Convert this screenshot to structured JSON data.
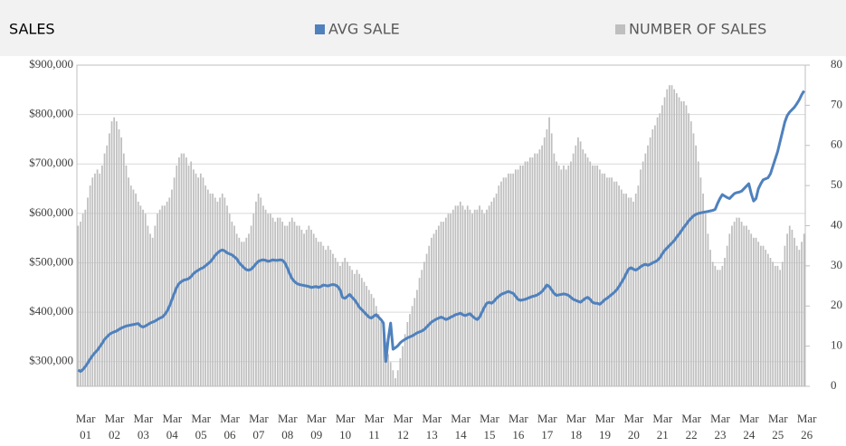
{
  "chart_data": {
    "type": "combo",
    "title": "SALES",
    "categories": [
      null,
      null,
      "Mar 01",
      null,
      null,
      null,
      null,
      null,
      null,
      null,
      null,
      null,
      null,
      null,
      "Mar 02",
      null,
      null,
      null,
      null,
      null,
      null,
      null,
      null,
      null,
      null,
      null,
      "Mar 03",
      null,
      null,
      null,
      null,
      null,
      null,
      null,
      null,
      null,
      null,
      null,
      "Mar 04",
      null,
      null,
      null,
      null,
      null,
      null,
      null,
      null,
      null,
      null,
      null,
      "Mar 05",
      null,
      null,
      null,
      null,
      null,
      null,
      null,
      null,
      null,
      null,
      null,
      "Mar 06",
      null,
      null,
      null,
      null,
      null,
      null,
      null,
      null,
      null,
      null,
      null,
      "Mar 07",
      null,
      null,
      null,
      null,
      null,
      null,
      null,
      null,
      null,
      null,
      null,
      "Mar 08",
      null,
      null,
      null,
      null,
      null,
      null,
      null,
      null,
      null,
      null,
      null,
      "Mar 09",
      null,
      null,
      null,
      null,
      null,
      null,
      null,
      null,
      null,
      null,
      null,
      "Mar 10",
      null,
      null,
      null,
      null,
      null,
      null,
      null,
      null,
      null,
      null,
      null,
      "Mar 11",
      null,
      null,
      null,
      null,
      null,
      null,
      null,
      null,
      null,
      null,
      null,
      "Mar 12",
      null,
      null,
      null,
      null,
      null,
      null,
      null,
      null,
      null,
      null,
      null,
      "Mar 13",
      null,
      null,
      null,
      null,
      null,
      null,
      null,
      null,
      null,
      null,
      null,
      "Mar 14",
      null,
      null,
      null,
      null,
      null,
      null,
      null,
      null,
      null,
      null,
      null,
      "Mar 15",
      null,
      null,
      null,
      null,
      null,
      null,
      null,
      null,
      null,
      null,
      null,
      "Mar 16",
      null,
      null,
      null,
      null,
      null,
      null,
      null,
      null,
      null,
      null,
      null,
      "Mar 17",
      null,
      null,
      null,
      null,
      null,
      null,
      null,
      null,
      null,
      null,
      null,
      "Mar 18",
      null,
      null,
      null,
      null,
      null,
      null,
      null,
      null,
      null,
      null,
      null,
      "Mar 19",
      null,
      null,
      null,
      null,
      null,
      null,
      null,
      null,
      null,
      null,
      null,
      "Mar 20",
      null,
      null,
      null,
      null,
      null,
      null,
      null,
      null,
      null,
      null,
      null,
      "Mar 21",
      null,
      null,
      null,
      null,
      null,
      null,
      null,
      null,
      null,
      null,
      null,
      "Mar 22",
      null,
      null,
      null,
      null,
      null,
      null,
      null,
      null,
      null,
      null,
      null,
      "Mar 23",
      null,
      null,
      null,
      null,
      null,
      null,
      null,
      null,
      null,
      null,
      null,
      "Mar 24",
      null,
      null,
      null,
      null,
      null,
      null,
      null,
      null,
      null,
      null,
      null,
      "Mar 25",
      null,
      null,
      null,
      null,
      null,
      null,
      null,
      null,
      null,
      null,
      null,
      "Mar 26"
    ],
    "series": [
      {
        "name": "NUMBER OF SALES",
        "type": "bar",
        "axis": "y2",
        "color": "#bfbfbf",
        "values": [
          40,
          41,
          43,
          44,
          47,
          50,
          52,
          53,
          54,
          53,
          55,
          58,
          60,
          63,
          66,
          67,
          66,
          64,
          62,
          58,
          55,
          52,
          50,
          49,
          48,
          46,
          45,
          44,
          43,
          40,
          38,
          37,
          40,
          43,
          44,
          45,
          45,
          46,
          47,
          49,
          52,
          55,
          57,
          58,
          58,
          57,
          55,
          56,
          54,
          53,
          52,
          53,
          52,
          50,
          49,
          48,
          48,
          47,
          46,
          47,
          48,
          47,
          45,
          43,
          41,
          40,
          38,
          37,
          36,
          36,
          37,
          38,
          40,
          43,
          46,
          48,
          47,
          45,
          44,
          43,
          43,
          42,
          41,
          42,
          42,
          41,
          40,
          40,
          41,
          42,
          41,
          40,
          40,
          39,
          38,
          39,
          40,
          39,
          38,
          37,
          36,
          36,
          35,
          34,
          35,
          34,
          33,
          32,
          31,
          30,
          31,
          32,
          31,
          30,
          29,
          28,
          29,
          28,
          27,
          26,
          25,
          24,
          23,
          22,
          20,
          18,
          16,
          14,
          11,
          8,
          6,
          4,
          2,
          4,
          7,
          10,
          13,
          16,
          18,
          20,
          22,
          24,
          27,
          29,
          31,
          33,
          35,
          37,
          38,
          39,
          40,
          41,
          41,
          42,
          43,
          43,
          44,
          45,
          45,
          46,
          45,
          44,
          45,
          44,
          43,
          44,
          44,
          45,
          44,
          43,
          44,
          45,
          46,
          47,
          48,
          50,
          51,
          52,
          52,
          53,
          53,
          53,
          54,
          54,
          55,
          55,
          56,
          56,
          57,
          57,
          58,
          58,
          59,
          60,
          62,
          64,
          67,
          63,
          58,
          56,
          55,
          54,
          55,
          54,
          55,
          56,
          58,
          60,
          62,
          61,
          59,
          58,
          57,
          56,
          55,
          55,
          55,
          54,
          53,
          53,
          52,
          52,
          52,
          51,
          51,
          50,
          49,
          48,
          48,
          47,
          47,
          46,
          48,
          50,
          54,
          56,
          58,
          60,
          62,
          64,
          65,
          67,
          68,
          70,
          72,
          74,
          75,
          75,
          74,
          73,
          72,
          71,
          71,
          70,
          68,
          66,
          63,
          60,
          56,
          52,
          48,
          43,
          38,
          34,
          31,
          30,
          29,
          29,
          30,
          32,
          35,
          38,
          40,
          41,
          42,
          42,
          41,
          40,
          40,
          39,
          38,
          37,
          37,
          36,
          35,
          35,
          34,
          33,
          32,
          31,
          30,
          30,
          29,
          31,
          35,
          38,
          40,
          39,
          37,
          35,
          34,
          36,
          38
        ]
      },
      {
        "name": "AVG SALE",
        "type": "line",
        "color": "#4f81bd",
        "values": [
          283000,
          280000,
          284000,
          290000,
          297000,
          305000,
          312000,
          318000,
          323000,
          330000,
          337000,
          345000,
          350000,
          355000,
          358000,
          360000,
          362000,
          365000,
          368000,
          370000,
          372000,
          373000,
          374000,
          375000,
          376000,
          377000,
          372000,
          370000,
          372000,
          375000,
          378000,
          380000,
          382000,
          385000,
          388000,
          390000,
          395000,
          402000,
          412000,
          425000,
          438000,
          450000,
          458000,
          462000,
          465000,
          466000,
          468000,
          472000,
          478000,
          482000,
          485000,
          488000,
          490000,
          494000,
          498000,
          502000,
          508000,
          515000,
          520000,
          524000,
          526000,
          524000,
          520000,
          518000,
          516000,
          512000,
          508000,
          500000,
          495000,
          490000,
          486000,
          485000,
          487000,
          492000,
          498000,
          503000,
          505000,
          506000,
          505000,
          503000,
          504000,
          506000,
          505000,
          505000,
          506000,
          505000,
          500000,
          490000,
          478000,
          468000,
          462000,
          458000,
          456000,
          455000,
          454000,
          453000,
          452000,
          450000,
          451000,
          452000,
          450000,
          452000,
          455000,
          454000,
          453000,
          455000,
          456000,
          455000,
          452000,
          445000,
          430000,
          428000,
          432000,
          436000,
          430000,
          425000,
          418000,
          410000,
          405000,
          400000,
          395000,
          390000,
          388000,
          392000,
          395000,
          390000,
          385000,
          378000,
          300000,
          345000,
          378000,
          325000,
          328000,
          332000,
          338000,
          342000,
          345000,
          348000,
          350000,
          352000,
          355000,
          358000,
          360000,
          362000,
          365000,
          370000,
          375000,
          380000,
          383000,
          386000,
          388000,
          390000,
          388000,
          385000,
          387000,
          390000,
          392000,
          395000,
          396000,
          398000,
          395000,
          393000,
          395000,
          397000,
          392000,
          388000,
          385000,
          390000,
          400000,
          410000,
          418000,
          420000,
          418000,
          422000,
          428000,
          432000,
          436000,
          438000,
          440000,
          442000,
          440000,
          438000,
          432000,
          426000,
          424000,
          425000,
          426000,
          428000,
          430000,
          432000,
          433000,
          435000,
          438000,
          442000,
          448000,
          455000,
          452000,
          445000,
          438000,
          434000,
          435000,
          436000,
          437000,
          436000,
          434000,
          430000,
          426000,
          424000,
          422000,
          420000,
          424000,
          428000,
          430000,
          426000,
          420000,
          418000,
          418000,
          416000,
          420000,
          425000,
          428000,
          432000,
          436000,
          440000,
          445000,
          452000,
          460000,
          468000,
          478000,
          487000,
          490000,
          487000,
          485000,
          488000,
          492000,
          495000,
          497000,
          495000,
          497000,
          500000,
          502000,
          505000,
          510000,
          518000,
          525000,
          530000,
          535000,
          540000,
          545000,
          552000,
          558000,
          565000,
          572000,
          578000,
          585000,
          590000,
          595000,
          598000,
          600000,
          601000,
          602000,
          603000,
          604000,
          605000,
          606000,
          608000,
          620000,
          630000,
          638000,
          635000,
          632000,
          630000,
          635000,
          640000,
          642000,
          643000,
          645000,
          650000,
          655000,
          660000,
          640000,
          625000,
          630000,
          650000,
          660000,
          668000,
          670000,
          672000,
          680000,
          695000,
          710000,
          725000,
          745000,
          765000,
          785000,
          798000,
          805000,
          810000,
          815000,
          822000,
          830000,
          840000,
          848000
        ]
      }
    ],
    "ylim": [
      250000,
      900000
    ],
    "yticks": [
      {
        "value": 300000,
        "label": "$300,000"
      },
      {
        "value": 400000,
        "label": "$400,000"
      },
      {
        "value": 500000,
        "label": "$500,000"
      },
      {
        "value": 600000,
        "label": "$600,000"
      },
      {
        "value": 700000,
        "label": "$700,000"
      },
      {
        "value": 800000,
        "label": "$800,000"
      },
      {
        "value": 900000,
        "label": "$900,000"
      }
    ],
    "y2lim": [
      0,
      80
    ],
    "y2ticks": [
      0,
      10,
      20,
      30,
      40,
      50,
      60,
      70,
      80
    ],
    "grid": true
  }
}
